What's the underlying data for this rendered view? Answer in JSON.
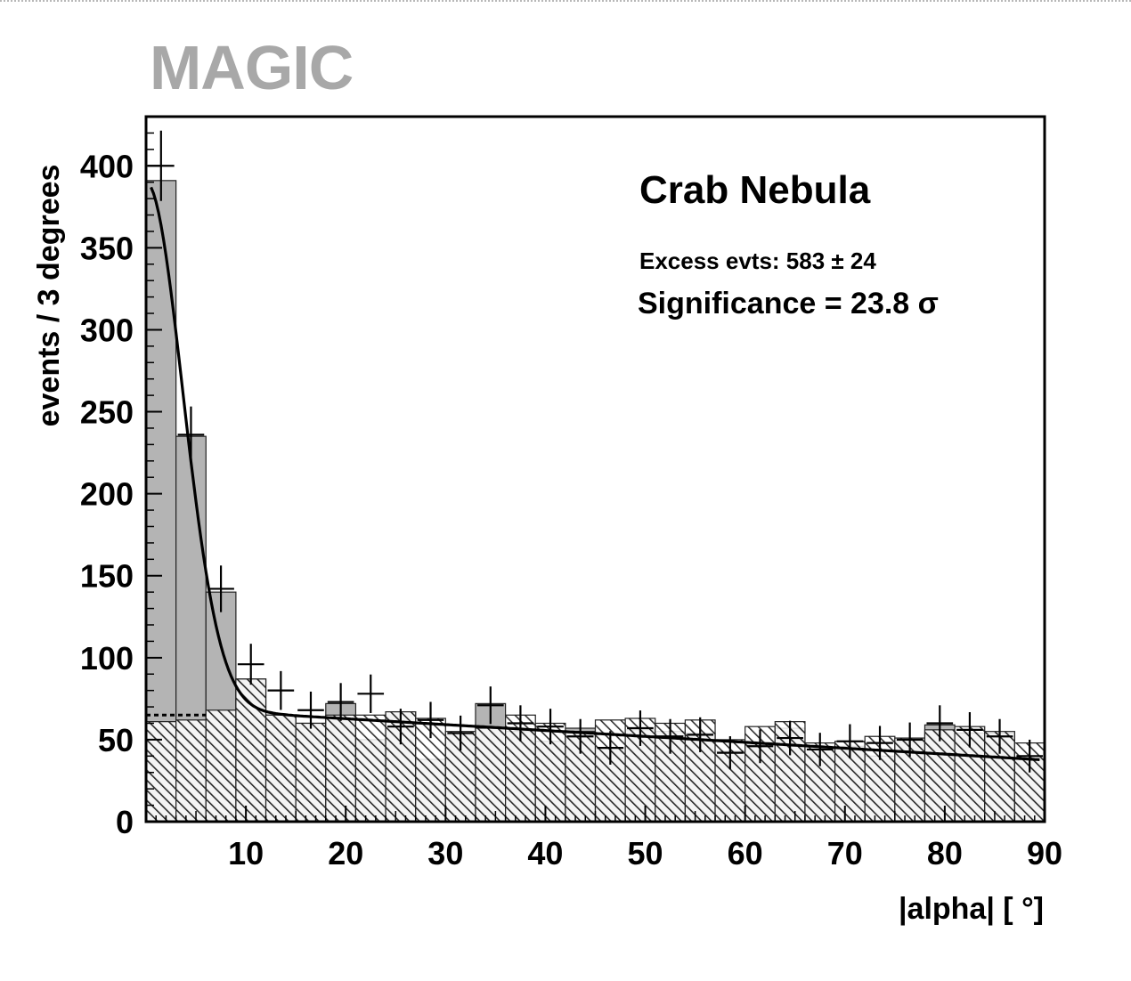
{
  "brand": "MAGIC",
  "chart_data": {
    "type": "bar",
    "subtype": "histogram",
    "xlabel": "|alpha|  [ °]",
    "ylabel": "events / 3 degrees",
    "xlim": [
      0,
      90
    ],
    "ylim": [
      0,
      430
    ],
    "x_ticks": [
      "10",
      "20",
      "30",
      "40",
      "50",
      "60",
      "70",
      "80",
      "90"
    ],
    "y_ticks": [
      "0",
      "50",
      "100",
      "150",
      "200",
      "250",
      "300",
      "350",
      "400"
    ],
    "bin_width": 3,
    "bin_edges": [
      0,
      3,
      6,
      9,
      12,
      15,
      18,
      21,
      24,
      27,
      30,
      33,
      36,
      39,
      42,
      45,
      48,
      51,
      54,
      57,
      60,
      63,
      66,
      69,
      72,
      75,
      78,
      81,
      84,
      87,
      90
    ],
    "series": [
      {
        "style": "gray-filled",
        "values": [
          391,
          235,
          140,
          87,
          65,
          60,
          72,
          50,
          67,
          38,
          53,
          72,
          55,
          49,
          57,
          45,
          56,
          55,
          54,
          43,
          47,
          57,
          46,
          46,
          40,
          49,
          59,
          54,
          54,
          38
        ]
      },
      {
        "style": "hatched",
        "values": [
          61,
          62,
          68,
          87,
          65,
          60,
          65,
          65,
          67,
          63,
          55,
          57,
          65,
          60,
          55,
          62,
          63,
          60,
          62,
          50,
          58,
          61,
          48,
          49,
          52,
          51,
          56,
          58,
          55,
          48
        ]
      },
      {
        "style": "crosses",
        "values": [
          400,
          236,
          142,
          96,
          80,
          68,
          73,
          78,
          58,
          62,
          54,
          71,
          60,
          58,
          52,
          45,
          57,
          52,
          53,
          42,
          46,
          51,
          44,
          49,
          48,
          50,
          60,
          56,
          52,
          40
        ]
      }
    ],
    "fit_curve": "exponential signal + linear background",
    "background_level_dotted": 65,
    "annotations": {
      "title": "Crab Nebula",
      "excess": "Excess evts: 583 ± 24",
      "significance": "Significance = 23.8 σ"
    }
  }
}
